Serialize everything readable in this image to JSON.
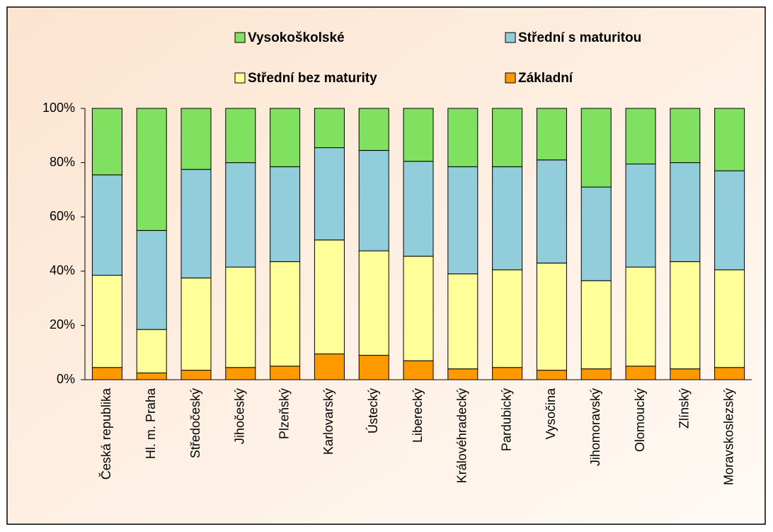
{
  "chart_data": {
    "type": "stacked_bar",
    "categories": [
      "Česká republika",
      "Hl. m. Praha",
      "Středočeský",
      "Jihočeský",
      "Plzeňský",
      "Karlovarský",
      "Ústecký",
      "Liberecký",
      "Královéhradecký",
      "Pardubický",
      "Vysočina",
      "Jihomoravský",
      "Olomoucký",
      "Zlínský",
      "Moravskoslezský"
    ],
    "series": [
      {
        "name": "Základní",
        "color": "#ff9900",
        "values": [
          4.5,
          2.5,
          3.5,
          4.5,
          5,
          9.5,
          9,
          7,
          4,
          4.5,
          3.5,
          4,
          5,
          4,
          4.5
        ]
      },
      {
        "name": "Střední bez maturity",
        "color": "#ffff99",
        "values": [
          34,
          16,
          34,
          37,
          38.5,
          42,
          38.5,
          38.5,
          35,
          36,
          39.5,
          32.5,
          36.5,
          39.5,
          36
        ]
      },
      {
        "name": "Střední s maturitou",
        "color": "#92cddc",
        "values": [
          37,
          36.5,
          40,
          38.5,
          35,
          34,
          37,
          35,
          39.5,
          38,
          38,
          34.5,
          38,
          36.5,
          36.5
        ]
      },
      {
        "name": "Vysokoškolské",
        "color": "#80e060",
        "values": [
          24.5,
          45,
          22.5,
          20,
          21.5,
          14.5,
          15.5,
          19.5,
          21.5,
          21.5,
          19,
          29,
          20.5,
          20,
          23
        ]
      }
    ],
    "ylim": [
      0,
      100
    ],
    "yticks": [
      {
        "value": 0,
        "label": "0%"
      },
      {
        "value": 20,
        "label": "20%"
      },
      {
        "value": 40,
        "label": "40%"
      },
      {
        "value": 60,
        "label": "60%"
      },
      {
        "value": 80,
        "label": "80%"
      },
      {
        "value": 100,
        "label": "100%"
      }
    ],
    "legend": "top"
  }
}
